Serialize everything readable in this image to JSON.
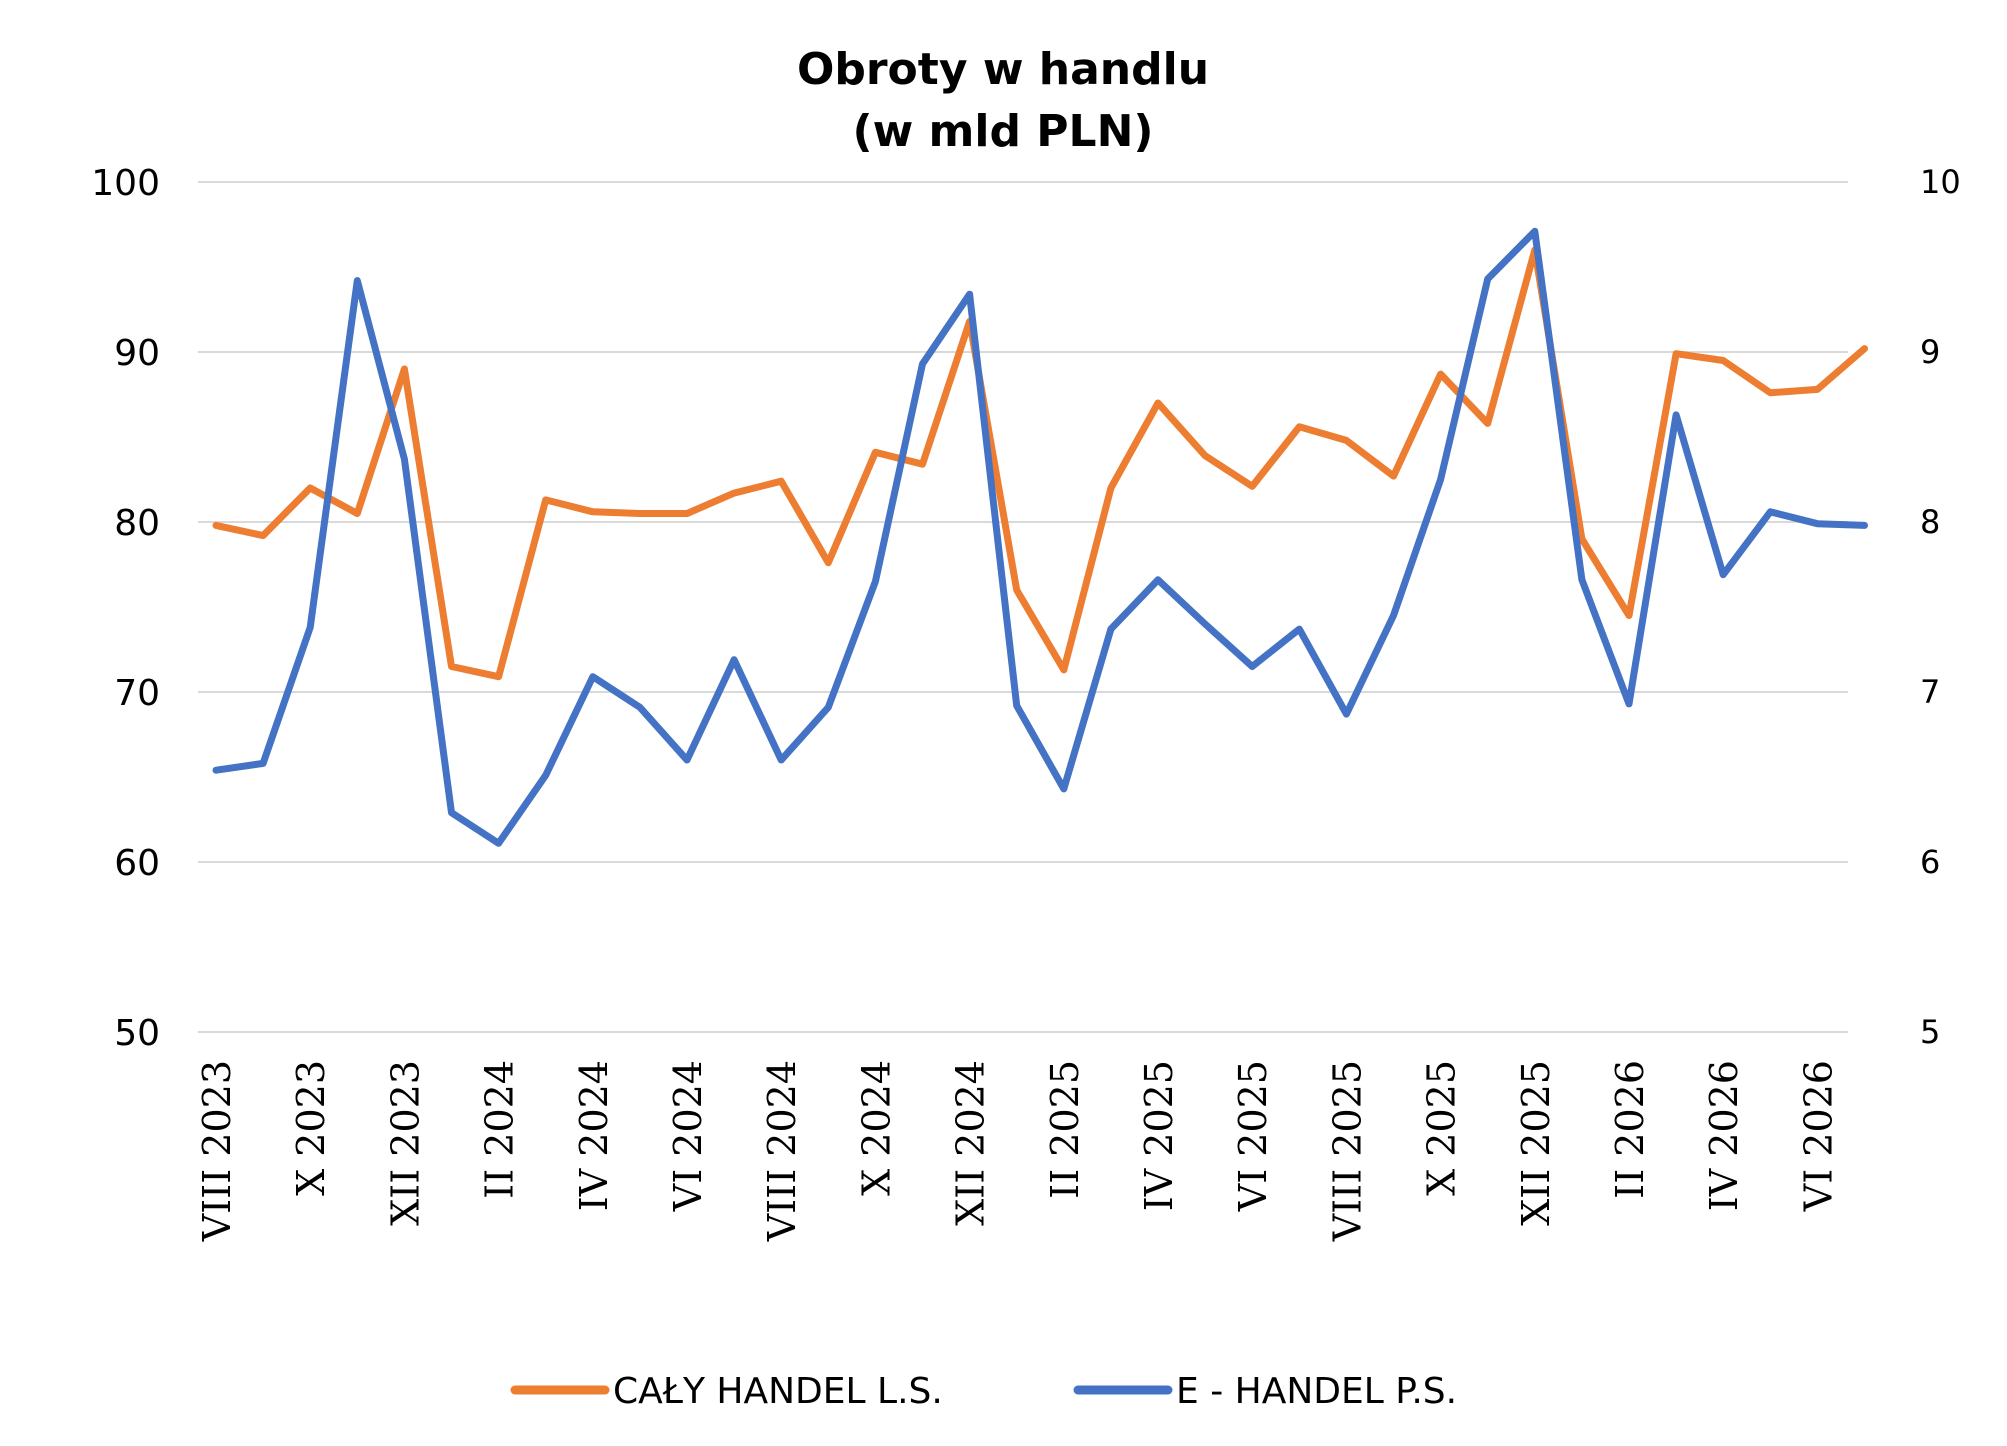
{
  "chart_data": {
    "type": "line",
    "title_lines": [
      "Obroty w handlu",
      "(w mld PLN)"
    ],
    "x": [
      "VIII 2023",
      "IX 2023",
      "X 2023",
      "XI 2023",
      "XII 2023",
      "I 2024",
      "II 2024",
      "III 2024",
      "IV 2024",
      "V 2024",
      "VI 2024",
      "VII 2024",
      "VIII 2024",
      "IX 2024",
      "X 2024",
      "XI 2024",
      "XII 2024",
      "I 2025",
      "II 2025",
      "III 2025",
      "IV 2025",
      "V 2025",
      "VI 2025",
      "VII 2025",
      "VIII 2025",
      "IX 2025",
      "X 2025",
      "XI 2025",
      "XII 2025",
      "I 2026",
      "II 2026",
      "III 2026",
      "IV 2026",
      "V 2026",
      "VI 2026",
      "VII 2026"
    ],
    "xtick_labels": [
      "VIII 2023",
      "X 2023",
      "XII 2023",
      "II 2024",
      "IV 2024",
      "VI 2024",
      "VIII 2024",
      "X 2024",
      "XII 2024",
      "II 2025",
      "IV 2025",
      "VI 2025",
      "VIII 2025",
      "X 2025",
      "XII 2025",
      "II 2026",
      "IV 2026",
      "VI 2026"
    ],
    "y_left": {
      "ylim": [
        50,
        100
      ],
      "ticks": [
        "50",
        "60",
        "70",
        "80",
        "90",
        "100"
      ]
    },
    "y_right": {
      "ylim": [
        5,
        10
      ],
      "ticks": [
        "5",
        "6",
        "7",
        "8",
        "9",
        "10"
      ]
    },
    "grid": true,
    "legend_position": "bottom",
    "series": [
      {
        "name": "CAŁY HANDEL L.S.",
        "axis": "left",
        "color": "#ED7D31",
        "values": [
          79.8,
          79.2,
          82.0,
          80.5,
          89.0,
          71.5,
          70.9,
          81.3,
          80.6,
          80.5,
          80.5,
          81.7,
          82.4,
          77.6,
          84.1,
          83.4,
          91.8,
          76.0,
          71.3,
          82.0,
          87.0,
          83.9,
          82.1,
          85.6,
          84.8,
          82.7,
          88.7,
          85.8,
          96.0,
          79.0,
          74.5,
          89.9,
          89.5,
          87.6,
          87.8,
          90.2
        ]
      },
      {
        "name": "E - HANDEL P.S.",
        "axis": "right",
        "color": "#4472C4",
        "values": [
          6.54,
          6.58,
          7.38,
          9.42,
          8.37,
          6.29,
          6.11,
          6.51,
          7.09,
          6.91,
          6.6,
          7.19,
          6.6,
          6.91,
          7.65,
          8.93,
          9.34,
          6.92,
          6.43,
          7.37,
          7.66,
          7.4,
          7.15,
          7.37,
          6.87,
          7.45,
          8.25,
          9.43,
          9.71,
          7.66,
          6.93,
          8.63,
          7.69,
          8.06,
          7.99,
          7.98
        ]
      }
    ]
  }
}
